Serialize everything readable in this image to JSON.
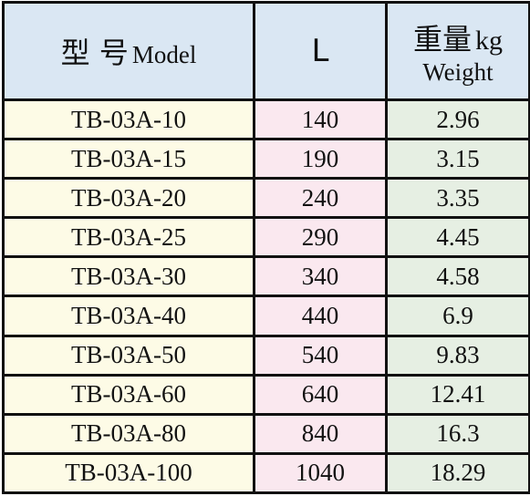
{
  "header": {
    "model_cn": "型 号",
    "model_en": "Model",
    "length": "L",
    "weight_cn": "重量",
    "weight_unit": "kg",
    "weight_en": "Weight"
  },
  "table": {
    "rows": [
      [
        "TB-03A-10",
        "140",
        "2.96"
      ],
      [
        "TB-03A-15",
        "190",
        "3.15"
      ],
      [
        "TB-03A-20",
        "240",
        "3.35"
      ],
      [
        "TB-03A-25",
        "290",
        "4.45"
      ],
      [
        "TB-03A-30",
        "340",
        "4.58"
      ],
      [
        "TB-03A-40",
        "440",
        "6.9"
      ],
      [
        "TB-03A-50",
        "540",
        "9.83"
      ],
      [
        "TB-03A-60",
        "640",
        "12.41"
      ],
      [
        "TB-03A-80",
        "840",
        "16.3"
      ],
      [
        "TB-03A-100",
        "1040",
        "18.29"
      ]
    ]
  }
}
